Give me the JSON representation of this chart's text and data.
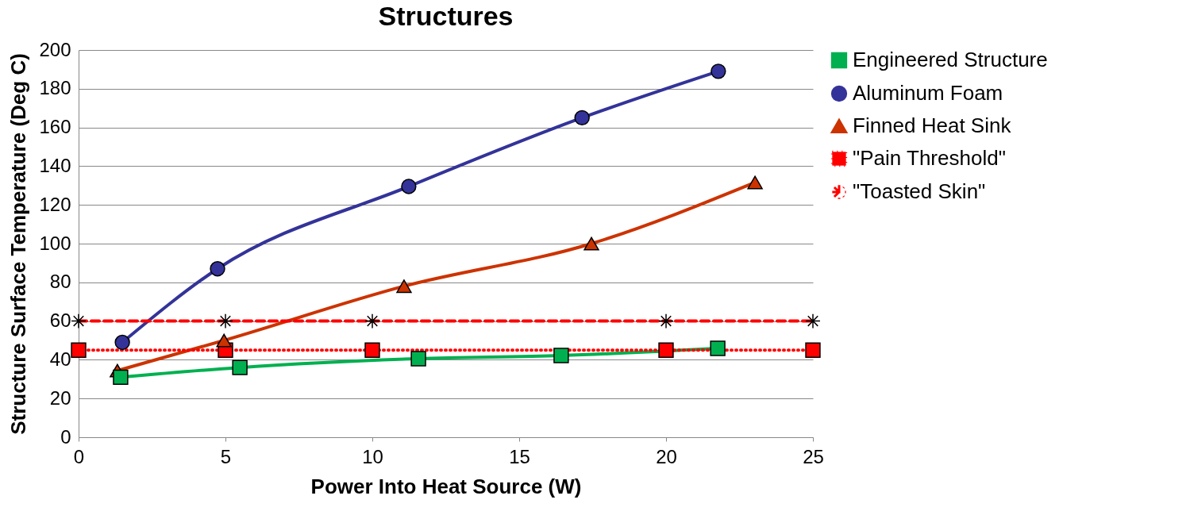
{
  "chart_data": {
    "type": "line",
    "title": "Structures",
    "xlabel": "Power Into Heat Source (W)",
    "ylabel": "Structure Surface Temperature (Deg C)",
    "xlim": [
      0,
      25
    ],
    "xticks": [
      0,
      5,
      10,
      15,
      20,
      25
    ],
    "ylim": [
      0,
      200
    ],
    "yticks": [
      0,
      20,
      40,
      60,
      80,
      100,
      120,
      140,
      160,
      180,
      200
    ],
    "grid": "y",
    "legend": "right",
    "series": [
      {
        "name": "Engineered Structure",
        "color": "#00b050",
        "marker": "square",
        "line_style": "solid",
        "x": [
          1.43,
          5.49,
          11.57,
          16.43,
          21.76
        ],
        "values": [
          31,
          36,
          40.6,
          42.2,
          45.9
        ]
      },
      {
        "name": "Aluminum Foam",
        "color": "#333399",
        "marker": "circle",
        "line_style": "solid",
        "x": [
          1.49,
          4.73,
          11.24,
          17.14,
          21.78
        ],
        "values": [
          49,
          87,
          129.5,
          165,
          189
        ]
      },
      {
        "name": "Finned Heat Sink",
        "color": "#cc3300",
        "marker": "triangle",
        "line_style": "solid",
        "x": [
          1.32,
          4.95,
          11.08,
          17.46,
          23.03
        ],
        "values": [
          34.4,
          50,
          78,
          100,
          131.6
        ]
      },
      {
        "name": "\"Pain Threshold\"",
        "color": "#ff0000",
        "marker": "square",
        "line_style": "dotted",
        "x": [
          0,
          5,
          10,
          20,
          25
        ],
        "values": [
          45,
          45,
          45,
          45,
          45
        ]
      },
      {
        "name": "\"Toasted Skin\"",
        "color": "#ff0000",
        "marker": "cross",
        "line_style": "dashed",
        "x": [
          0,
          5,
          10,
          20,
          25
        ],
        "values": [
          60,
          60,
          60,
          60,
          60
        ]
      }
    ]
  }
}
